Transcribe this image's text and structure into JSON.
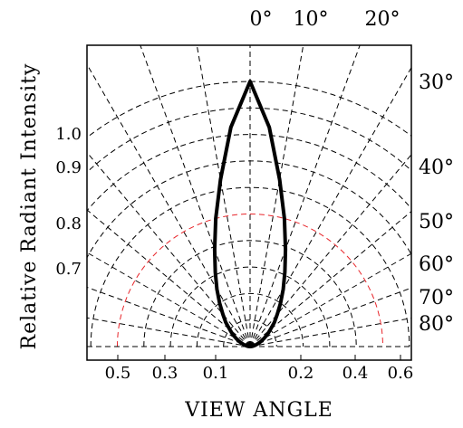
{
  "chart_data": {
    "type": "polar-radiation-pattern",
    "xlabel": "VIEW ANGLE",
    "ylabel": "Relative Radiant Intensity",
    "angle_labels_top": [
      "0°",
      "10°",
      "20°"
    ],
    "angle_labels_right": [
      "30°",
      "40°",
      "50°",
      "60°",
      "70°",
      "80°"
    ],
    "radius_labels_left": [
      "1.0",
      "0.9",
      "0.8",
      "0.7"
    ],
    "bottom_tick_labels": [
      "0.5",
      "0.3",
      "0.1",
      "0.2",
      "0.4",
      "0.6"
    ],
    "grid_angles_deg": [
      -80,
      -70,
      -60,
      -50,
      -40,
      -30,
      -20,
      -10,
      0,
      10,
      20,
      30,
      40,
      50,
      60,
      70,
      80
    ],
    "grid_radii": [
      0.1,
      0.2,
      0.3,
      0.4,
      0.5,
      0.6,
      0.7,
      0.8,
      0.9,
      1.0
    ],
    "highlight_radius": 0.5,
    "highlight_color": "#e8262b",
    "grid_color": "#000000",
    "pattern": {
      "angles_deg": [
        0,
        5,
        10,
        15,
        20,
        25,
        30,
        35,
        40,
        45,
        50,
        55,
        60,
        65,
        70,
        75,
        80,
        85,
        90
      ],
      "intensity": [
        1.0,
        0.83,
        0.64,
        0.5,
        0.39,
        0.31,
        0.25,
        0.2,
        0.16,
        0.13,
        0.1,
        0.08,
        0.06,
        0.045,
        0.03,
        0.02,
        0.012,
        0.005,
        0.0
      ]
    }
  }
}
